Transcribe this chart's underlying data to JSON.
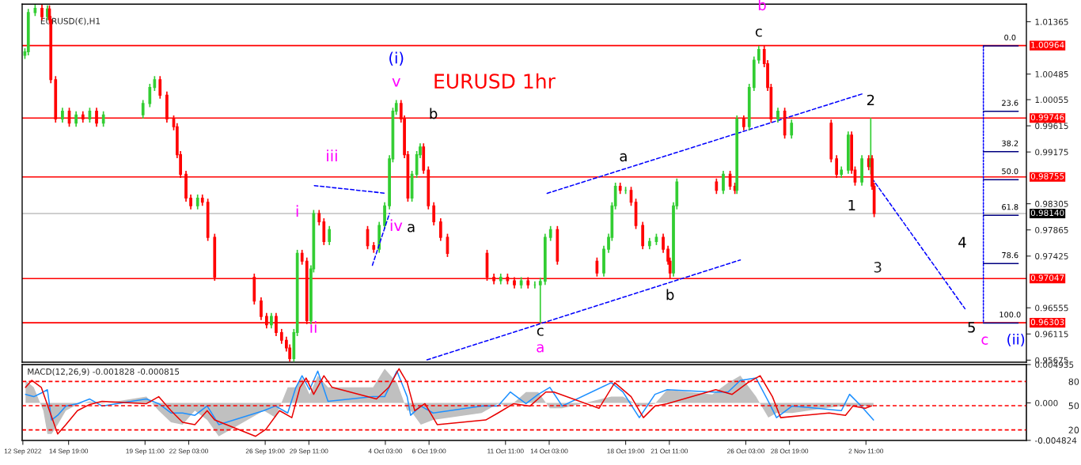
{
  "chart_data": [
    {
      "type": "candlestick",
      "title": "EURUSD 1hr",
      "subtitle": "EURUSD(€),H1",
      "grid": false,
      "tick_labels": "y",
      "xlim": [
        "2022-09-11T23:00",
        "2022-11-12T06:00"
      ],
      "ylim": [
        0.9564,
        1.0166
      ],
      "yticks": [
        1.01365,
        1.00485,
        1.00055,
        0.99615,
        0.99175,
        0.98305,
        0.97865,
        0.97425,
        0.96555,
        0.96115,
        0.95675
      ],
      "x": [
        "2022-09-12T03:00",
        "2022-09-12T08:00",
        "2022-09-12T18:00",
        "2022-09-13T04:00",
        "2022-09-13T12:00",
        "2022-09-13T15:00",
        "2022-09-13T17:00",
        "2022-09-14T00:00",
        "2022-09-14T10:00",
        "2022-09-14T20:00",
        "2022-09-15T06:00",
        "2022-09-15T16:00",
        "2022-09-16T02:00",
        "2022-09-16T12:00",
        "2022-09-16T22:00",
        "2022-09-19T08:00",
        "2022-09-19T18:00",
        "2022-09-20T01:00",
        "2022-09-20T09:00",
        "2022-09-20T19:00",
        "2022-09-21T05:00",
        "2022-09-21T10:00",
        "2022-09-21T15:00",
        "2022-09-21T23:00",
        "2022-09-22T06:00",
        "2022-09-22T16:00",
        "2022-09-22T23:00",
        "2022-09-23T07:00",
        "2022-09-23T17:00",
        "2022-09-26T03:00",
        "2022-09-26T13:00",
        "2022-09-26T21:00",
        "2022-09-27T04:00",
        "2022-09-27T11:00",
        "2022-09-27T19:00",
        "2022-09-28T02:00",
        "2022-09-28T07:00",
        "2022-09-28T13:00",
        "2022-09-28T18:00",
        "2022-09-29T01:00",
        "2022-09-29T08:00",
        "2022-09-29T14:00",
        "2022-09-29T18:00",
        "2022-09-30T02:00",
        "2022-09-30T09:00",
        "2022-09-30T17:00",
        "2022-10-03T01:00",
        "2022-10-03T10:00",
        "2022-10-03T18:00",
        "2022-10-04T02:00",
        "2022-10-04T09:00",
        "2022-10-04T14:00",
        "2022-10-04T19:00",
        "2022-10-05T02:00",
        "2022-10-05T07:00",
        "2022-10-05T12:00",
        "2022-10-05T18:00",
        "2022-10-06T01:00",
        "2022-10-06T06:00",
        "2022-10-06T11:00",
        "2022-10-06T18:00",
        "2022-10-07T02:00",
        "2022-10-07T12:00",
        "2022-10-07T22:00",
        "2022-10-10T08:00",
        "2022-10-10T18:00",
        "2022-10-11T04:00",
        "2022-10-11T14:00",
        "2022-10-12T00:00",
        "2022-10-12T10:00",
        "2022-10-12T20:00",
        "2022-10-13T06:00",
        "2022-10-13T14:00",
        "2022-10-13T21:00",
        "2022-10-14T05:00",
        "2022-10-14T15:00",
        "2022-10-17T01:00",
        "2022-10-17T11:00",
        "2022-10-17T18:00",
        "2022-10-17T23:00",
        "2022-10-18T04:00",
        "2022-10-18T11:00",
        "2022-10-18T19:00",
        "2022-10-19T03:00",
        "2022-10-19T10:00",
        "2022-10-19T20:00",
        "2022-10-20T06:00",
        "2022-10-20T16:00",
        "2022-10-21T02:00",
        "2022-10-21T09:00",
        "2022-10-21T12:00",
        "2022-10-21T17:00",
        "2022-10-21T22:00",
        "2022-10-24T08:00",
        "2022-10-24T18:00",
        "2022-10-25T04:00",
        "2022-10-25T11:00",
        "2022-10-25T14:00",
        "2022-10-26T00:00",
        "2022-10-26T08:00",
        "2022-10-26T15:00",
        "2022-10-26T22:00",
        "2022-10-27T06:00",
        "2022-10-27T11:00",
        "2022-10-27T16:00",
        "2022-10-28T02:00",
        "2022-10-28T12:00",
        "2022-10-28T22:00",
        "2022-10-31T08:00",
        "2022-10-31T16:00",
        "2022-10-31T23:00",
        "2022-11-01T09:00",
        "2022-11-01T14:00",
        "2022-11-01T19:00",
        "2022-11-02T05:00",
        "2022-11-02T15:00",
        "2022-11-02T18:00",
        "2022-11-02T20:00",
        "2022-11-02T23:00"
      ],
      "ohlc": [
        [
          1.008,
          1.0092,
          1.0074,
          1.0086
        ],
        [
          1.0086,
          1.0158,
          1.008,
          1.0152
        ],
        [
          1.0152,
          1.0165,
          1.0146,
          1.0159
        ],
        [
          1.0159,
          1.0165,
          1.0139,
          1.0145
        ],
        [
          1.0145,
          1.0164,
          1.0139,
          1.0158
        ],
        [
          1.0158,
          1.0164,
          1.0134,
          1.014
        ],
        [
          1.014,
          1.0146,
          1.0033,
          1.0039
        ],
        [
          1.0039,
          1.0045,
          0.9967,
          0.9973
        ],
        [
          0.9973,
          0.9992,
          0.9967,
          0.9986
        ],
        [
          0.9986,
          0.9992,
          0.996,
          0.9966
        ],
        [
          0.9966,
          0.9986,
          0.996,
          0.998
        ],
        [
          0.998,
          0.9986,
          0.9967,
          0.9973
        ],
        [
          0.9973,
          0.9992,
          0.9967,
          0.9986
        ],
        [
          0.9986,
          0.9992,
          0.996,
          0.9966
        ],
        [
          0.9966,
          0.9986,
          0.996,
          0.998
        ],
        [
          0.998,
          1.0005,
          0.9974,
          0.9999
        ],
        [
          0.9999,
          1.0032,
          0.9993,
          1.0026
        ],
        [
          1.0026,
          1.0045,
          1.002,
          1.0039
        ],
        [
          1.0039,
          1.0045,
          1.0007,
          1.0013
        ],
        [
          1.0013,
          1.0019,
          0.9967,
          0.9973
        ],
        [
          0.9973,
          0.9979,
          0.9954,
          0.996
        ],
        [
          0.996,
          0.9966,
          0.9907,
          0.9913
        ],
        [
          0.9913,
          0.9919,
          0.9874,
          0.988
        ],
        [
          0.988,
          0.9886,
          0.9834,
          0.984
        ],
        [
          0.984,
          0.9846,
          0.9821,
          0.9827
        ],
        [
          0.9827,
          0.9846,
          0.9821,
          0.984
        ],
        [
          0.984,
          0.9846,
          0.9827,
          0.9833
        ],
        [
          0.9833,
          0.9839,
          0.9768,
          0.9774
        ],
        [
          0.9774,
          0.978,
          0.9701,
          0.9707
        ],
        [
          0.9707,
          0.9713,
          0.9661,
          0.9667
        ],
        [
          0.9667,
          0.9673,
          0.9635,
          0.9641
        ],
        [
          0.9641,
          0.9647,
          0.9621,
          0.9627
        ],
        [
          0.9627,
          0.9647,
          0.9621,
          0.9641
        ],
        [
          0.9641,
          0.9647,
          0.9608,
          0.9614
        ],
        [
          0.9614,
          0.962,
          0.9595,
          0.9601
        ],
        [
          0.9601,
          0.9607,
          0.9582,
          0.9588
        ],
        [
          0.9588,
          0.9594,
          0.9565,
          0.957
        ],
        [
          0.957,
          0.962,
          0.9565,
          0.9614
        ],
        [
          0.9614,
          0.9753,
          0.9608,
          0.9747
        ],
        [
          0.9747,
          0.9753,
          0.9728,
          0.9734
        ],
        [
          0.9734,
          0.974,
          0.9628,
          0.9634
        ],
        [
          0.9634,
          0.9727,
          0.9628,
          0.9721
        ],
        [
          0.9721,
          0.982,
          0.9715,
          0.9814
        ],
        [
          0.9814,
          0.982,
          0.9794,
          0.98
        ],
        [
          0.98,
          0.9806,
          0.9761,
          0.9767
        ],
        [
          0.9767,
          0.9793,
          0.9761,
          0.9787
        ],
        [
          0.9787,
          0.9793,
          0.9754,
          0.976
        ],
        [
          0.976,
          0.9766,
          0.9748,
          0.9754
        ],
        [
          0.9754,
          0.98,
          0.9748,
          0.9794
        ],
        [
          0.9794,
          0.9833,
          0.9788,
          0.9827
        ],
        [
          0.9827,
          0.9912,
          0.9821,
          0.9906
        ],
        [
          0.9906,
          0.9992,
          0.99,
          0.9986
        ],
        [
          0.9986,
          1.0005,
          0.998,
          0.9999
        ],
        [
          0.9999,
          1.0005,
          0.9967,
          0.9973
        ],
        [
          0.9973,
          0.9979,
          0.9907,
          0.9913
        ],
        [
          0.9913,
          0.9919,
          0.9834,
          0.984
        ],
        [
          0.984,
          0.9886,
          0.9834,
          0.988
        ],
        [
          0.988,
          0.9919,
          0.9874,
          0.9913
        ],
        [
          0.9913,
          0.9932,
          0.9907,
          0.9926
        ],
        [
          0.9926,
          0.9932,
          0.9881,
          0.9887
        ],
        [
          0.9887,
          0.9893,
          0.9821,
          0.9827
        ],
        [
          0.9827,
          0.9833,
          0.9794,
          0.98
        ],
        [
          0.98,
          0.9806,
          0.9768,
          0.9774
        ],
        [
          0.9774,
          0.978,
          0.9741,
          0.9747
        ],
        [
          0.9747,
          0.9753,
          0.9701,
          0.9707
        ],
        [
          0.9707,
          0.9713,
          0.9695,
          0.9701
        ],
        [
          0.9701,
          0.9713,
          0.9695,
          0.9707
        ],
        [
          0.9707,
          0.9713,
          0.9695,
          0.9701
        ],
        [
          0.9701,
          0.9707,
          0.9688,
          0.9694
        ],
        [
          0.9694,
          0.9707,
          0.9688,
          0.9701
        ],
        [
          0.9701,
          0.9707,
          0.9688,
          0.9694
        ],
        [
          0.9694,
          0.97,
          0.9688,
          0.9694
        ],
        [
          0.9694,
          0.9706,
          0.963,
          0.97
        ],
        [
          0.97,
          0.978,
          0.9694,
          0.9774
        ],
        [
          0.9774,
          0.9793,
          0.9768,
          0.9787
        ],
        [
          0.9787,
          0.9793,
          0.9728,
          0.9734
        ],
        [
          0.9734,
          0.974,
          0.9708,
          0.9714
        ],
        [
          0.9714,
          0.976,
          0.9708,
          0.9754
        ],
        [
          0.9754,
          0.978,
          0.9748,
          0.9774
        ],
        [
          0.9774,
          0.9833,
          0.9768,
          0.9827
        ],
        [
          0.9827,
          0.9866,
          0.9821,
          0.986
        ],
        [
          0.986,
          0.9866,
          0.9847,
          0.9853
        ],
        [
          0.9853,
          0.9859,
          0.9847,
          0.9853
        ],
        [
          0.9853,
          0.9859,
          0.9827,
          0.9833
        ],
        [
          0.9833,
          0.9839,
          0.9788,
          0.9794
        ],
        [
          0.9794,
          0.98,
          0.9754,
          0.976
        ],
        [
          0.976,
          0.9773,
          0.9754,
          0.9767
        ],
        [
          0.9767,
          0.978,
          0.9761,
          0.9774
        ],
        [
          0.9774,
          0.978,
          0.9748,
          0.9754
        ],
        [
          0.9754,
          0.976,
          0.9728,
          0.9734
        ],
        [
          0.9734,
          0.974,
          0.9705,
          0.9714
        ],
        [
          0.9714,
          0.9833,
          0.9708,
          0.9827
        ],
        [
          0.9827,
          0.9873,
          0.9821,
          0.9867
        ],
        [
          0.9867,
          0.9873,
          0.9847,
          0.9853
        ],
        [
          0.9853,
          0.9886,
          0.9847,
          0.988
        ],
        [
          0.988,
          0.9886,
          0.9854,
          0.986
        ],
        [
          0.986,
          0.9866,
          0.9847,
          0.9853
        ],
        [
          0.9853,
          0.9979,
          0.9847,
          0.9973
        ],
        [
          0.9973,
          0.9979,
          0.9954,
          0.996
        ],
        [
          0.996,
          1.0032,
          0.9954,
          1.0026
        ],
        [
          1.0026,
          1.0078,
          1.002,
          1.0072
        ],
        [
          1.0072,
          1.0096,
          1.0066,
          1.009
        ],
        [
          1.009,
          1.0096,
          1.006,
          1.0066
        ],
        [
          1.0066,
          1.0072,
          1.002,
          1.0026
        ],
        [
          1.0026,
          1.0032,
          0.9967,
          0.9973
        ],
        [
          0.9973,
          0.9992,
          0.9967,
          0.9986
        ],
        [
          0.9986,
          0.9992,
          0.994,
          0.9946
        ],
        [
          0.9946,
          0.9972,
          0.994,
          0.9966
        ],
        [
          0.9966,
          0.9972,
          0.99,
          0.9906
        ],
        [
          0.9906,
          0.9912,
          0.9874,
          0.988
        ],
        [
          0.988,
          0.9893,
          0.9874,
          0.9887
        ],
        [
          0.9887,
          0.9952,
          0.9881,
          0.9946
        ],
        [
          0.9946,
          0.9952,
          0.9881,
          0.9887
        ],
        [
          0.9887,
          0.9893,
          0.9861,
          0.9867
        ],
        [
          0.9867,
          0.9912,
          0.9861,
          0.9906
        ],
        [
          0.9906,
          0.9912,
          0.9887,
          0.9893
        ],
        [
          0.9893,
          0.9975,
          0.988,
          0.9906
        ],
        [
          0.9906,
          0.9912,
          0.9854,
          0.986
        ],
        [
          0.986,
          0.9866,
          0.9808,
          0.9814
        ]
      ],
      "series": [
        {
          "type": "line",
          "line_style": "dashed",
          "color": "#0000ff",
          "x": [
            "2022-10-06T16:00",
            "2022-10-25T19:00"
          ],
          "values": [
            0.9568,
            0.9736
          ]
        },
        {
          "type": "line",
          "line_style": "dashed",
          "color": "#0000ff",
          "x": [
            "2022-10-14T00:00",
            "2022-11-02T05:00"
          ],
          "values": [
            0.9848,
            1.0015
          ]
        },
        {
          "type": "line",
          "line_style": "dashed",
          "color": "#0000ff",
          "x": [
            "2022-11-02T20:00",
            "2022-11-08T12:00"
          ],
          "values": [
            0.9873,
            0.9654
          ]
        },
        {
          "type": "line",
          "line_style": "dashed",
          "color": "#0000ff",
          "x": [
            "2022-09-29T19:00",
            "2022-10-04T04:00"
          ],
          "values": [
            0.9861,
            0.9848
          ]
        },
        {
          "type": "line",
          "line_style": "dashed",
          "color": "#0000ff",
          "x": [
            "2022-10-03T08:00",
            "2022-10-04T09:00"
          ],
          "values": [
            0.9727,
            0.9814
          ]
        },
        {
          "type": "line",
          "line_style": "dotted",
          "color": "#0000ff",
          "x": [
            "2022-11-09T15:00",
            "2022-11-09T15:00"
          ],
          "values": [
            1.0096,
            0.963
          ]
        },
        {
          "type": "line",
          "line_style": "solid",
          "color": "#000080",
          "x": [
            "2022-11-09T15:00",
            "2022-11-11T18:00"
          ],
          "values": [
            1.0096,
            1.0096
          ]
        },
        {
          "type": "line",
          "line_style": "solid",
          "color": "#000080",
          "x": [
            "2022-11-09T15:00",
            "2022-11-11T18:00"
          ],
          "values": [
            0.9986,
            0.9986
          ]
        },
        {
          "type": "line",
          "line_style": "solid",
          "color": "#000080",
          "x": [
            "2022-11-09T15:00",
            "2022-11-11T18:00"
          ],
          "values": [
            0.9918,
            0.9918
          ]
        },
        {
          "type": "line",
          "line_style": "solid",
          "color": "#000080",
          "x": [
            "2022-11-09T15:00",
            "2022-11-11T18:00"
          ],
          "values": [
            0.9871,
            0.9871
          ]
        },
        {
          "type": "line",
          "line_style": "solid",
          "color": "#000080",
          "x": [
            "2022-11-09T15:00",
            "2022-11-11T18:00"
          ],
          "values": [
            0.9811,
            0.9811
          ]
        },
        {
          "type": "line",
          "line_style": "solid",
          "color": "#000080",
          "x": [
            "2022-11-09T15:00",
            "2022-11-11T18:00"
          ],
          "values": [
            0.973,
            0.973
          ]
        },
        {
          "type": "line",
          "line_style": "solid",
          "color": "#000080",
          "x": [
            "2022-11-09T15:00",
            "2022-11-11T18:00"
          ],
          "values": [
            0.963,
            0.963
          ]
        }
      ],
      "ref_lines": [
        {
          "axis": "y",
          "value": 1.00964,
          "label": "1.00964",
          "color": "#ff0000"
        },
        {
          "axis": "y",
          "value": 0.99746,
          "label": "0.99746",
          "color": "#ff0000"
        },
        {
          "axis": "y",
          "value": 0.98755,
          "label": "0.98755",
          "color": "#ff0000"
        },
        {
          "axis": "y",
          "value": 0.9814,
          "label": "0.98140",
          "color": "#c0c0c0"
        },
        {
          "axis": "y",
          "value": 0.97047,
          "label": "0.97047",
          "color": "#ff0000"
        },
        {
          "axis": "y",
          "value": 0.96303,
          "label": "0.96303",
          "color": "#ff0000"
        }
      ],
      "annotations": [
        {
          "text": "(i)",
          "x": "2022-10-04T19:00",
          "y": 1.0005
        },
        {
          "text": "v",
          "x": "2022-10-04T19:00",
          "y": 1.0005
        },
        {
          "text": "iii",
          "x": "2022-09-29T19:00",
          "y": 0.9861
        },
        {
          "text": "i",
          "x": "2022-09-28T18:00",
          "y": 0.9753
        },
        {
          "text": "ii",
          "x": "2022-09-29T08:00",
          "y": 0.9628
        },
        {
          "text": "iv",
          "x": "2022-10-04T09:00",
          "y": 0.9814
        },
        {
          "text": "a",
          "x": "2022-10-05T12:00",
          "y": 0.9834
        },
        {
          "text": "b",
          "x": "2022-10-06T06:00",
          "y": 0.9932
        },
        {
          "text": "a",
          "x": "2022-10-18T11:00",
          "y": 0.9866
        },
        {
          "text": "c",
          "x": "2022-10-13T14:00",
          "y": 0.963
        },
        {
          "text": "a",
          "x": "2022-10-13T14:00",
          "y": 0.963
        },
        {
          "text": "b",
          "x": "2022-10-21T12:00",
          "y": 0.9705
        },
        {
          "text": "b",
          "x": "2022-10-26T22:00",
          "y": 1.0096
        },
        {
          "text": "c",
          "x": "2022-10-26T22:00",
          "y": 1.0096
        },
        {
          "text": "2",
          "x": "2022-11-02T18:00",
          "y": 0.9975
        },
        {
          "text": "1",
          "x": "2022-11-01T19:00",
          "y": 0.9861
        },
        "3",
        {
          "text": "4",
          "x": "2022-11-07T16:00",
          "y": 0.9686
        },
        {
          "text": "5",
          "x": "2022-11-08T12:00",
          "y": 0.9654
        },
        {
          "text": "c",
          "x": "2022-11-09T17:00",
          "y": 0.963
        },
        {
          "text": "(ii)",
          "x": "2022-11-10T16:00",
          "y": 0.963
        },
        {
          "text": "0.0",
          "x": "2022-11-11T06:00",
          "y": 1.0096
        },
        {
          "text": "23.6",
          "x": "2022-11-11T06:00",
          "y": 0.9986
        },
        {
          "text": "38.2",
          "x": "2022-11-11T06:00",
          "y": 0.9918
        },
        {
          "text": "50.0",
          "x": "2022-11-11T06:00",
          "y": 0.9871
        },
        {
          "text": "61.8",
          "x": "2022-11-11T06:00",
          "y": 0.9811
        },
        {
          "text": "78.6",
          "x": "2022-11-11T06:00",
          "y": 0.973
        },
        {
          "text": "100.0",
          "x": "2022-11-11T06:00",
          "y": 0.963
        }
      ]
    },
    {
      "type": "line",
      "title": "MACD(12,26,9) -0.001828 -0.000815",
      "grid": false,
      "xlim": [
        "2022-09-11T23:00",
        "2022-11-12T06:00"
      ],
      "ylim": [
        -0.004824,
        0.004935
      ],
      "y2lim": [
        7,
        101
      ],
      "xticks": [
        {
          "value": "2022-09-12T00:00",
          "label": "12 Sep 2022"
        },
        {
          "value": "2022-09-14T19:00",
          "label": "14 Sep 19:00"
        },
        {
          "value": "2022-09-19T11:00",
          "label": "19 Sep 11:00"
        },
        {
          "value": "2022-09-22T03:00",
          "label": "22 Sep 03:00"
        },
        {
          "value": "2022-09-26T19:00",
          "label": "26 Sep 19:00"
        },
        {
          "value": "2022-09-29T11:00",
          "label": "29 Sep 11:00"
        },
        {
          "value": "2022-10-04T03:00",
          "label": "4 Oct 03:00"
        },
        {
          "value": "2022-10-06T19:00",
          "label": "6 Oct 19:00"
        },
        {
          "value": "2022-10-11T11:00",
          "label": "11 Oct 11:00"
        },
        {
          "value": "2022-10-14T03:00",
          "label": "14 Oct 03:00"
        },
        {
          "value": "2022-10-18T19:00",
          "label": "18 Oct 19:00"
        },
        {
          "value": "2022-10-21T11:00",
          "label": "21 Oct 11:00"
        },
        {
          "value": "2022-10-26T03:00",
          "label": "26 Oct 03:00"
        },
        {
          "value": "2022-10-28T19:00",
          "label": "28 Oct 19:00"
        },
        {
          "value": "2022-11-02T11:00",
          "label": "2 Nov 11:00"
        }
      ],
      "yticks": [
        0.004935,
        {
          "value": 0,
          "label": "0.000"
        },
        -0.004824
      ],
      "y2ticks": [
        80,
        50,
        20
      ],
      "ref_lines": [
        {
          "axis": "y2",
          "value": 80,
          "color": "#ff0000",
          "line_style": "dashed"
        },
        {
          "axis": "y2",
          "value": 50,
          "color": "#ff0000",
          "line_style": "dashed"
        },
        {
          "axis": "y2",
          "value": 20,
          "color": "#ff0000",
          "line_style": "dashed"
        }
      ],
      "series": [
        {
          "type": "area",
          "color": "#c0c0c0",
          "x": [
            "2022-09-12T04:00",
            "2022-09-12T16:00",
            "2022-09-13T06:00",
            "2022-09-13T12:00",
            "2022-09-13T18:00",
            "2022-09-14T03:00",
            "2022-09-14T15:00",
            "2022-09-15T08:00",
            "2022-09-16T02:00",
            "2022-09-16T20:00",
            "2022-09-19T13:00",
            "2022-09-20T07:00",
            "2022-09-21T01:00",
            "2022-09-21T18:00",
            "2022-09-22T12:00",
            "2022-09-23T06:00",
            "2022-09-23T23:00",
            "2022-09-26T17:00",
            "2022-09-27T10:00",
            "2022-09-28T04:00",
            "2022-09-28T16:00",
            "2022-09-29T01:00",
            "2022-09-29T12:00",
            "2022-09-30T00:00",
            "2022-09-30T15:00",
            "2022-10-03T09:00",
            "2022-10-04T02:00",
            "2022-10-04T20:00",
            "2022-10-05T11:00",
            "2022-10-05T16:00",
            "2022-10-06T07:00",
            "2022-10-07T01:00",
            "2022-10-10T00:00",
            "2022-10-11T00:00",
            "2022-10-11T18:00",
            "2022-10-12T17:00",
            "2022-10-13T11:00",
            "2022-10-14T04:00",
            "2022-10-14T22:00",
            "2022-10-17T22:00",
            "2022-10-18T15:00",
            "2022-10-19T15:00",
            "2022-10-20T14:00",
            "2022-10-21T08:00",
            "2022-10-24T02:00",
            "2022-10-25T01:00",
            "2022-10-25T19:00",
            "2022-10-26T18:00",
            "2022-10-27T12:00",
            "2022-10-28T00:00",
            "2022-10-28T23:00",
            "2022-10-31T23:00",
            "2022-11-01T11:00",
            "2022-11-02T04:00",
            "2022-11-02T22:00"
          ],
          "values": [
            0.0029,
            0.002,
            -0.001,
            -0.004,
            -0.004,
            -0.0028,
            -0.001,
            -0.0002,
            0.0002,
            -0.0001,
            0.0008,
            -0.001,
            -0.0025,
            -0.0028,
            -0.001,
            -0.0022,
            -0.0043,
            -0.001,
            -0.0019,
            0.002,
            0.002,
            0.0032,
            0.0011,
            0.0035,
            0.002,
            0.002,
            0.0044,
            0.0026,
            -0.001,
            -0.001,
            -0.0028,
            -0.0022,
            -0.0013,
            -0.0001,
            -0.0004,
            0.0014,
            0.0014,
            -0.0007,
            -0.0007,
            0.0008,
            0.0008,
            -0.0004,
            -0.0001,
            0.0017,
            0.0011,
            0.0026,
            0.0035,
            0.0008,
            -0.0019,
            -0.0013,
            -0.0013,
            -0.0004,
            -0.0004,
            -0.0004,
            -0.0004
          ]
        },
        {
          "type": "line",
          "color": "#1e90ff",
          "x": [
            "2022-09-12T04:00",
            "2022-09-12T16:00",
            "2022-09-13T06:00",
            "2022-09-13T12:00",
            "2022-09-13T18:00",
            "2022-09-14T03:00",
            "2022-09-14T15:00",
            "2022-09-15T08:00",
            "2022-09-16T02:00",
            "2022-09-16T20:00",
            "2022-09-19T13:00",
            "2022-09-20T07:00",
            "2022-09-21T01:00",
            "2022-09-21T18:00",
            "2022-09-22T12:00",
            "2022-09-23T06:00",
            "2022-09-23T23:00",
            "2022-09-26T17:00",
            "2022-09-27T10:00",
            "2022-09-28T04:00",
            "2022-09-28T16:00",
            "2022-09-29T01:00",
            "2022-09-29T12:00",
            "2022-09-30T00:00",
            "2022-09-30T15:00",
            "2022-10-03T09:00",
            "2022-10-04T02:00",
            "2022-10-04T20:00",
            "2022-10-05T11:00",
            "2022-10-05T16:00",
            "2022-10-06T07:00",
            "2022-10-07T01:00",
            "2022-10-10T00:00",
            "2022-10-11T00:00",
            "2022-10-11T18:00",
            "2022-10-12T17:00",
            "2022-10-13T11:00",
            "2022-10-14T04:00",
            "2022-10-14T22:00",
            "2022-10-17T22:00",
            "2022-10-18T15:00",
            "2022-10-19T15:00",
            "2022-10-20T14:00",
            "2022-10-21T08:00",
            "2022-10-24T02:00",
            "2022-10-25T01:00",
            "2022-10-25T19:00",
            "2022-10-26T18:00",
            "2022-10-27T12:00",
            "2022-10-28T00:00",
            "2022-10-28T23:00",
            "2022-10-31T23:00",
            "2022-11-01T11:00",
            "2022-11-02T04:00",
            "2022-11-02T22:00"
          ],
          "values": [
            0.0011,
            0.0008,
            0.0014,
            0.0017,
            -0.0022,
            -0.0016,
            -0.0004,
            -0.0001,
            0.0005,
            -0.0004,
            0.0005,
            -0.0001,
            -0.0013,
            -0.0013,
            -0.0016,
            -0.0004,
            -0.0028,
            -0.001,
            -0.0004,
            -0.0013,
            0.002,
            0.0035,
            0.0017,
            0.0041,
            0.0002,
            0.0008,
            0.0008,
            0.0041,
            0.0008,
            -0.0016,
            -0.0004,
            -0.0013,
            -0.0004,
            -0.0004,
            0.0014,
            -0.0001,
            0.0011,
            0.002,
            -0.0004,
            0.0026,
            0.0014,
            -0.0019,
            0.0011,
            0.0017,
            0.0014,
            0.0014,
            0.0029,
            0.0032,
            0.0002,
            -0.0019,
            -0.0004,
            -0.001,
            0.0011,
            -0.0004,
            -0.0022
          ]
        },
        {
          "type": "line",
          "color": "#e80000",
          "x": [
            "2022-09-12T04:00",
            "2022-09-12T13:00",
            "2022-09-13T03:00",
            "2022-09-13T15:00",
            "2022-09-14T03:00",
            "2022-09-14T15:00",
            "2022-09-15T08:00",
            "2022-09-16T02:00",
            "2022-09-16T20:00",
            "2022-09-19T13:00",
            "2022-09-20T07:00",
            "2022-09-21T01:00",
            "2022-09-21T18:00",
            "2022-09-22T12:00",
            "2022-09-23T06:00",
            "2022-09-23T17:00",
            "2022-09-26T05:00",
            "2022-09-26T20:00",
            "2022-09-27T16:00",
            "2022-09-28T10:00",
            "2022-09-28T22:00",
            "2022-09-29T07:00",
            "2022-09-29T18:00",
            "2022-09-30T09:00",
            "2022-09-30T21:00",
            "2022-10-03T14:00",
            "2022-10-04T08:00",
            "2022-10-04T23:00",
            "2022-10-05T11:00",
            "2022-10-05T22:00",
            "2022-10-06T13:00",
            "2022-10-07T07:00",
            "2022-10-10T06:00",
            "2022-10-11T00:00",
            "2022-10-11T23:00",
            "2022-10-12T23:00",
            "2022-10-13T22:00",
            "2022-10-14T10:00",
            "2022-10-17T04:00",
            "2022-10-18T03:00",
            "2022-10-19T03:00",
            "2022-10-19T21:00",
            "2022-10-20T14:00",
            "2022-10-21T08:00",
            "2022-10-24T07:00",
            "2022-10-25T07:00",
            "2022-10-26T06:00",
            "2022-10-27T00:00",
            "2022-10-27T18:00",
            "2022-10-28T06:00",
            "2022-10-31T05:00",
            "2022-11-01T05:00",
            "2022-11-01T16:00",
            "2022-11-02T10:00",
            "2022-11-02T19:00"
          ],
          "values": [
            0.002,
            0.0029,
            0.002,
            -0.001,
            -0.004,
            -0.0028,
            -0.001,
            -0.0002,
            0.0002,
            -0.0001,
            0.0008,
            -0.001,
            -0.0025,
            -0.0028,
            -0.001,
            -0.0022,
            -0.0043,
            -0.0034,
            -0.001,
            -0.0019,
            0.002,
            0.0032,
            0.0011,
            0.0035,
            0.002,
            0.0005,
            0.002,
            0.0044,
            0.0026,
            -0.001,
            -0.0001,
            -0.0028,
            -0.0022,
            -0.0013,
            -0.0001,
            -0.0004,
            0.0014,
            0.0014,
            -0.0007,
            0.0026,
            0.0008,
            -0.0019,
            -0.0004,
            -0.0001,
            0.0017,
            0.0011,
            0.0026,
            0.0035,
            0.0008,
            -0.0019,
            -0.0013,
            -0.0016,
            -0.0004,
            -0.0007,
            -0.0004
          ]
        }
      ]
    }
  ]
}
